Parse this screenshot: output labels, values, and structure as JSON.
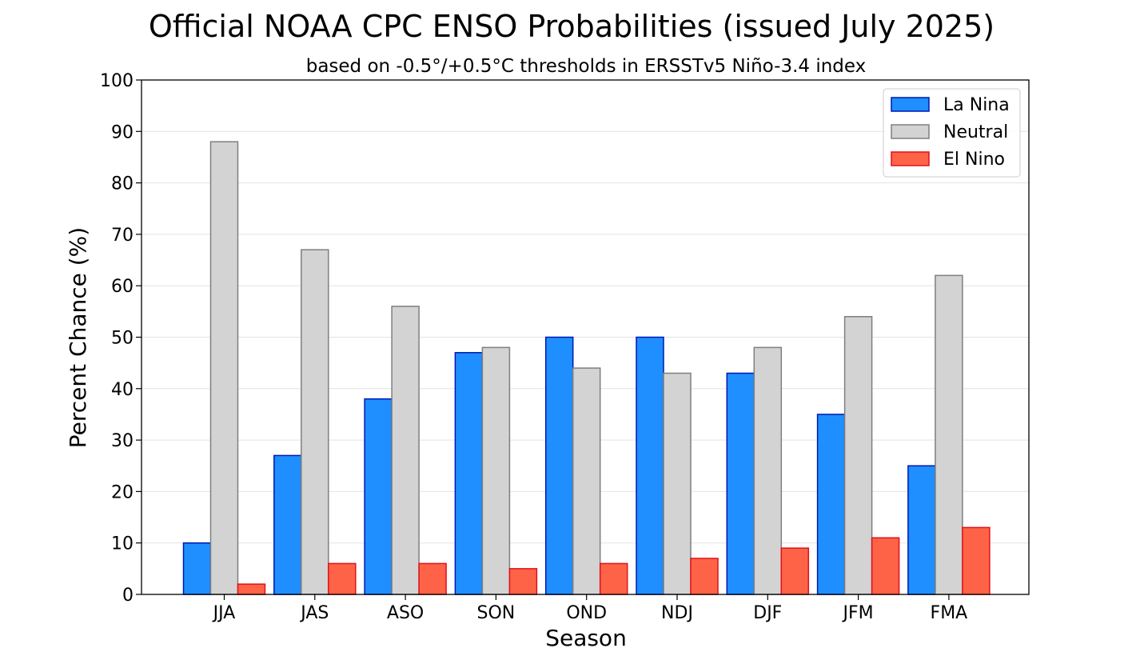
{
  "chart_data": {
    "type": "bar",
    "title": "Official NOAA CPC ENSO Probabilities (issued July 2025)",
    "subtitle": "based on -0.5°/+0.5°C thresholds in ERSSTv5 Niño-3.4 index",
    "xlabel": "Season",
    "ylabel": "Percent Chance (%)",
    "ylim": [
      0,
      100
    ],
    "yticks": [
      "0",
      "10",
      "20",
      "30",
      "40",
      "50",
      "60",
      "70",
      "80",
      "90",
      "100"
    ],
    "grid": "horizontal",
    "legend_position": "top-right",
    "categories": [
      "JJA",
      "JAS",
      "ASO",
      "SON",
      "OND",
      "NDJ",
      "DJF",
      "JFM",
      "FMA"
    ],
    "series": [
      {
        "name": "La Nina",
        "values": [
          10,
          27,
          38,
          47,
          50,
          50,
          43,
          35,
          25
        ],
        "fill": "#1f8fff",
        "stroke": "#0018b0"
      },
      {
        "name": "Neutral",
        "values": [
          88,
          67,
          56,
          48,
          44,
          43,
          48,
          54,
          62
        ],
        "fill": "#d3d3d3",
        "stroke": "#7f7f7f"
      },
      {
        "name": "El Nino",
        "values": [
          2,
          6,
          6,
          5,
          6,
          7,
          9,
          11,
          13
        ],
        "fill": "#ff6347",
        "stroke": "#e0101a"
      }
    ]
  }
}
